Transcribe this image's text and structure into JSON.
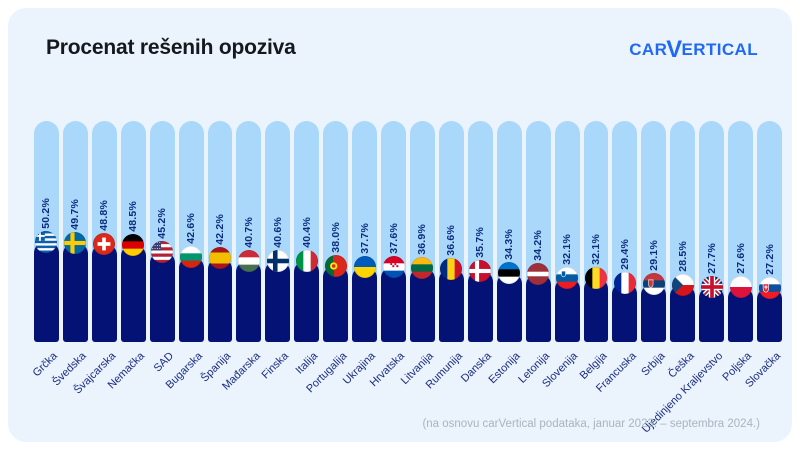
{
  "header": {
    "title": "Procenat rešenih opoziva",
    "logo": {
      "part1": "CAR",
      "part2": "V",
      "part3": "ERTICAL"
    }
  },
  "footnote": "(na osnovu carVertical podataka, januar 2023. – septembra 2024.)",
  "colors": {
    "card_bg": "#EBF4FD",
    "track": "#A9D8FA",
    "bar_fill": "#041275",
    "value_label": "#0D2C7F",
    "category_label": "#1B2C80",
    "logo_blue": "#2169F3",
    "footnote_gray": "#A9B4BF"
  },
  "chart_data": {
    "type": "bar",
    "title": "Procenat rešenih opoziva",
    "orientation": "vertical",
    "unit": "%",
    "ylim": [
      0,
      100
    ],
    "grid": false,
    "legend": false,
    "categories": [
      "Grčka",
      "Švedska",
      "Švajcarska",
      "Nemačka",
      "SAD",
      "Bugarska",
      "Španija",
      "Mađarska",
      "Finska",
      "Italija",
      "Portugalija",
      "Ukrajina",
      "Hrvatska",
      "Litvanija",
      "Rumunija",
      "Danska",
      "Estonija",
      "Letonija",
      "Slovenija",
      "Belgija",
      "Francuska",
      "Srbija",
      "Češka",
      "Ujedinjeno Kraljevstvo",
      "Poljska",
      "Slovačka"
    ],
    "values": [
      50.2,
      49.7,
      48.8,
      48.5,
      45.2,
      42.6,
      42.2,
      40.7,
      40.6,
      40.4,
      38.0,
      37.7,
      37.6,
      36.9,
      36.6,
      35.7,
      34.3,
      34.2,
      32.1,
      32.1,
      29.4,
      29.1,
      28.5,
      27.7,
      27.6,
      27.2
    ],
    "value_labels": [
      "50.2%",
      "49.7%",
      "48.8%",
      "48.5%",
      "45.2%",
      "42.6%",
      "42.2%",
      "40.7%",
      "40.6%",
      "40.4%",
      "38.0%",
      "37.7%",
      "37.6%",
      "36.9%",
      "36.6%",
      "35.7%",
      "34.3%",
      "34.2%",
      "32.1%",
      "32.1%",
      "29.4%",
      "29.1%",
      "28.5%",
      "27.7%",
      "27.6%",
      "27.2%"
    ],
    "flags": [
      "gr",
      "se",
      "ch",
      "de",
      "us",
      "bg",
      "es",
      "hu",
      "fi",
      "it",
      "pt",
      "ua",
      "hr",
      "lt",
      "ro",
      "dk",
      "ee",
      "lv",
      "si",
      "be",
      "fr",
      "rs",
      "cz",
      "gb",
      "pl",
      "sk"
    ]
  }
}
